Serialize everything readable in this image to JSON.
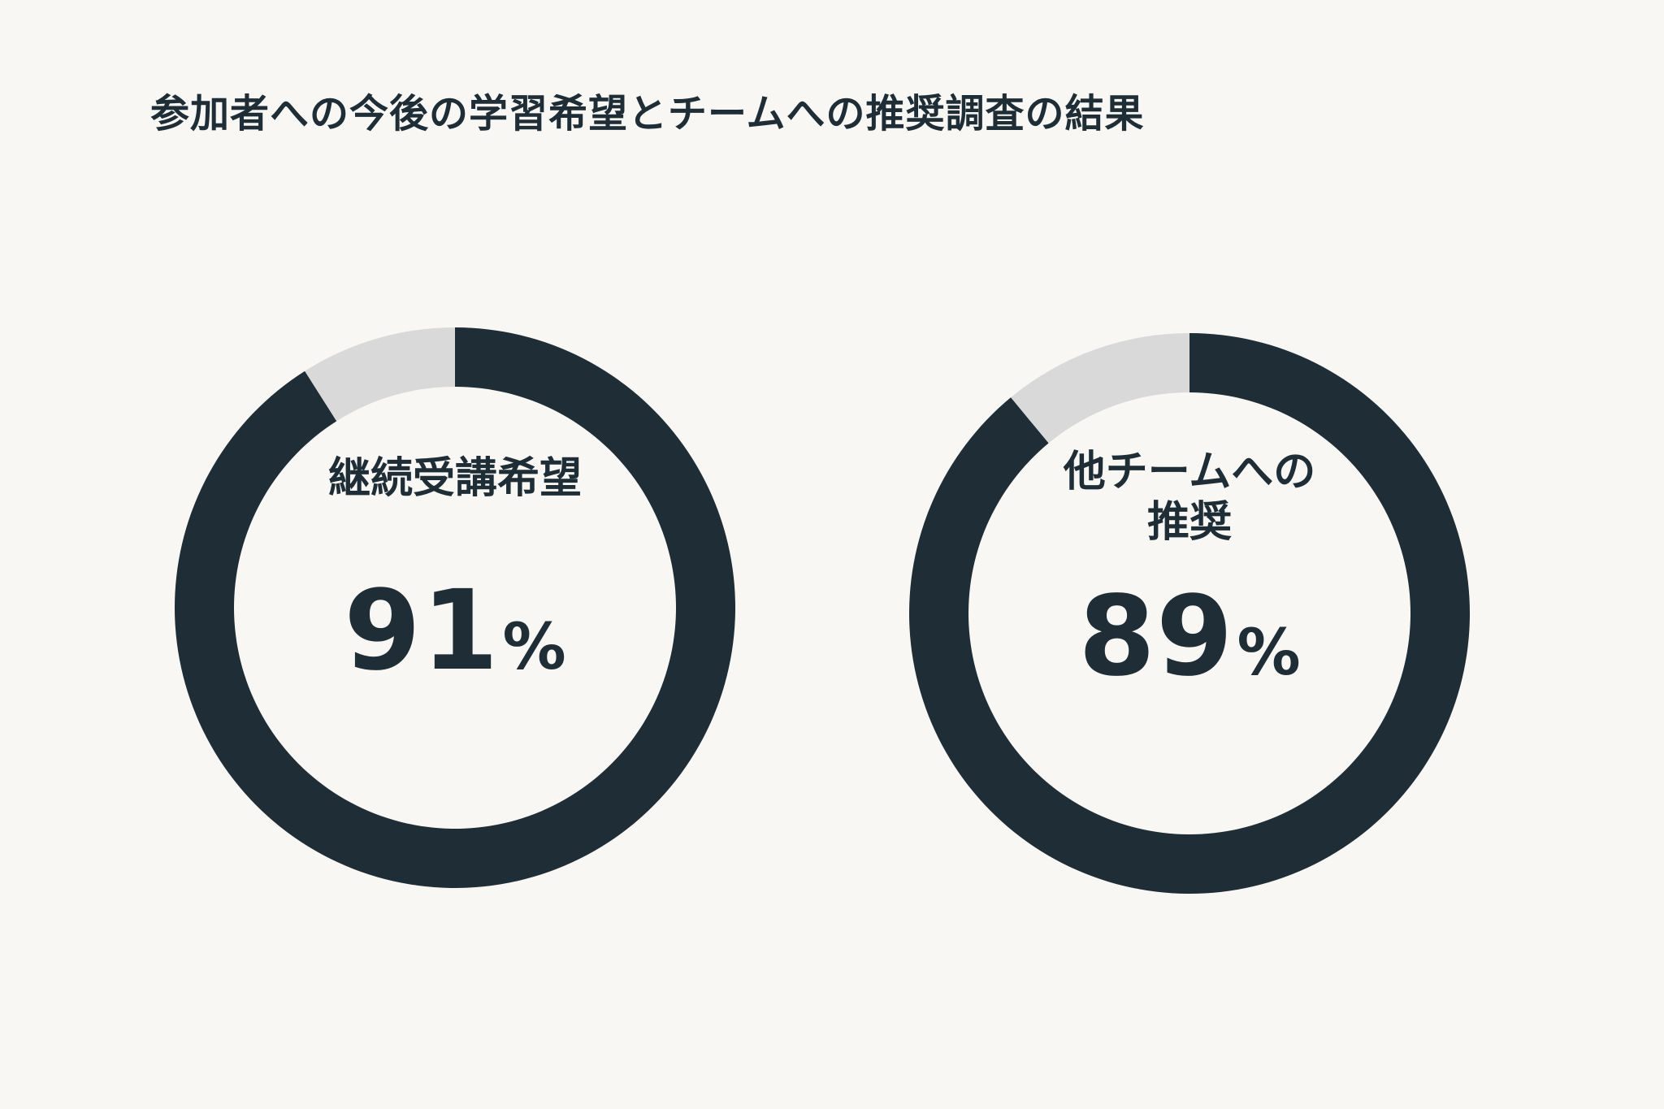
{
  "title": "参加者への今後の学習希望とチームへの推奨調査の結果",
  "colors": {
    "background": "#f8f7f4",
    "filled": "#1e2d36",
    "remainder": "#d9d9d9",
    "text": "#1e2d36"
  },
  "chart_data": [
    {
      "type": "pie",
      "style": "donut",
      "label": "継続受講希望",
      "value": 91,
      "value_text": "91",
      "unit": "%",
      "slices": [
        {
          "value": 91,
          "color": "#1e2d36"
        },
        {
          "value": 9,
          "color": "#d9d9d9"
        }
      ]
    },
    {
      "type": "pie",
      "style": "donut",
      "label": "他チームへの\n推奨",
      "value": 89,
      "value_text": "89",
      "unit": "%",
      "slices": [
        {
          "value": 89,
          "color": "#1e2d36"
        },
        {
          "value": 11,
          "color": "#d9d9d9"
        }
      ]
    }
  ]
}
